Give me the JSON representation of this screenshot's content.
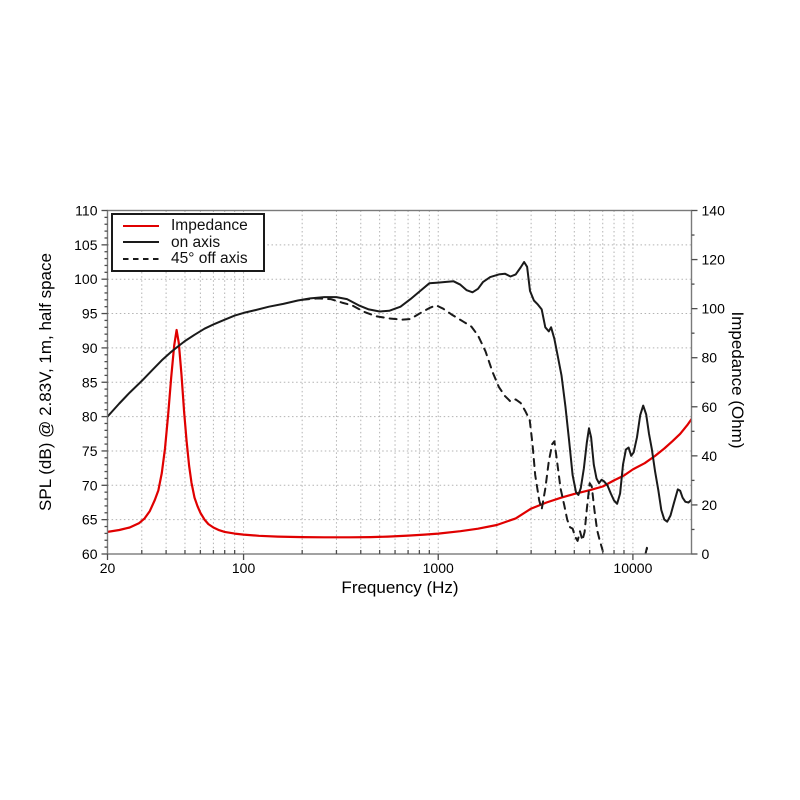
{
  "chart_data": {
    "type": "line",
    "title": "",
    "background": "#ffffff",
    "frame_color": "#7a7a7a",
    "grid": {
      "style": "dotted",
      "color": "#b3b3b3",
      "horizontal_db_lines": [
        65,
        70,
        75,
        80,
        85,
        90,
        95,
        100,
        105
      ],
      "vertical_log_lines": true
    },
    "x_axis": {
      "label": "Frequency (Hz)",
      "scale": "log",
      "min": 20,
      "max": 20000,
      "major_ticks": [
        20,
        100,
        1000,
        10000
      ],
      "major_tick_labels": [
        "20",
        "100",
        "1000",
        "10000"
      ]
    },
    "y_left": {
      "label": "SPL (dB) @ 2.83V, 1m, half space",
      "min": 60,
      "max": 110,
      "tick_step": 5,
      "minor_tick_step": 1,
      "tick_labels": [
        "60",
        "65",
        "70",
        "75",
        "80",
        "85",
        "90",
        "95",
        "100",
        "105",
        "110"
      ]
    },
    "y_right": {
      "label": "Impedance (Ohm)",
      "min": 0,
      "max": 140,
      "tick_step": 20,
      "minor_tick_step": 10,
      "tick_labels": [
        "0",
        "20",
        "40",
        "60",
        "80",
        "100",
        "120",
        "140"
      ]
    },
    "legend": {
      "position": "top-left",
      "entries": [
        {
          "label": "Impedance",
          "color": "#e00000",
          "dash": "solid"
        },
        {
          "label": "on axis",
          "color": "#1a1a1a",
          "dash": "solid"
        },
        {
          "label": "45° off axis",
          "color": "#1a1a1a",
          "dash": "dashed"
        }
      ]
    },
    "series": [
      {
        "name": "Impedance",
        "axis": "right",
        "unit": "Ohm",
        "color": "#e00000",
        "dash": "solid",
        "width": 2.2,
        "points": [
          [
            20,
            9.0
          ],
          [
            23,
            9.8
          ],
          [
            26,
            10.8
          ],
          [
            29,
            12.5
          ],
          [
            31,
            14.5
          ],
          [
            33,
            17.5
          ],
          [
            35,
            22
          ],
          [
            36.5,
            26
          ],
          [
            38,
            33
          ],
          [
            39.5,
            43
          ],
          [
            41,
            57
          ],
          [
            42.5,
            72
          ],
          [
            44,
            85
          ],
          [
            45.3,
            91.3
          ],
          [
            46.5,
            86
          ],
          [
            48,
            73
          ],
          [
            49.5,
            58
          ],
          [
            51,
            46
          ],
          [
            52.5,
            36
          ],
          [
            54,
            29
          ],
          [
            56,
            23
          ],
          [
            58,
            19.5
          ],
          [
            60,
            16.8
          ],
          [
            63,
            14
          ],
          [
            66,
            12.2
          ],
          [
            70,
            10.8
          ],
          [
            75,
            9.7
          ],
          [
            80,
            9.0
          ],
          [
            90,
            8.3
          ],
          [
            100,
            7.9
          ],
          [
            120,
            7.4
          ],
          [
            150,
            7.1
          ],
          [
            200,
            6.9
          ],
          [
            260,
            6.8
          ],
          [
            350,
            6.8
          ],
          [
            450,
            6.9
          ],
          [
            550,
            7.1
          ],
          [
            700,
            7.5
          ],
          [
            850,
            7.9
          ],
          [
            1000,
            8.3
          ],
          [
            1300,
            9.3
          ],
          [
            1600,
            10.3
          ],
          [
            2000,
            11.8
          ],
          [
            2500,
            14.5
          ],
          [
            3000,
            18.5
          ],
          [
            3600,
            21
          ],
          [
            4300,
            23
          ],
          [
            5000,
            24.5
          ],
          [
            6000,
            26
          ],
          [
            7000,
            27.5
          ],
          [
            8000,
            30
          ],
          [
            9000,
            32
          ],
          [
            10000,
            34.5
          ],
          [
            11500,
            37
          ],
          [
            13000,
            40
          ],
          [
            14500,
            43
          ],
          [
            16000,
            46
          ],
          [
            17500,
            49
          ],
          [
            19000,
            52.5
          ],
          [
            20000,
            55
          ]
        ]
      },
      {
        "name": "on axis",
        "axis": "left",
        "unit": "dB",
        "color": "#1a1a1a",
        "dash": "solid",
        "width": 2,
        "points": [
          [
            20,
            80.0
          ],
          [
            23,
            81.9
          ],
          [
            26,
            83.5
          ],
          [
            30,
            85.2
          ],
          [
            34,
            86.8
          ],
          [
            38,
            88.2
          ],
          [
            42,
            89.3
          ],
          [
            46,
            90.2
          ],
          [
            50,
            91.0
          ],
          [
            56,
            91.9
          ],
          [
            63,
            92.8
          ],
          [
            71,
            93.5
          ],
          [
            80,
            94.1
          ],
          [
            90,
            94.7
          ],
          [
            100,
            95.1
          ],
          [
            115,
            95.5
          ],
          [
            135,
            96.0
          ],
          [
            160,
            96.4
          ],
          [
            190,
            96.9
          ],
          [
            220,
            97.2
          ],
          [
            260,
            97.4
          ],
          [
            300,
            97.4
          ],
          [
            340,
            97.1
          ],
          [
            390,
            96.2
          ],
          [
            440,
            95.6
          ],
          [
            500,
            95.3
          ],
          [
            560,
            95.4
          ],
          [
            640,
            96.0
          ],
          [
            720,
            97.1
          ],
          [
            800,
            98.2
          ],
          [
            900,
            99.4
          ],
          [
            1000,
            99.5
          ],
          [
            1100,
            99.6
          ],
          [
            1200,
            99.7
          ],
          [
            1300,
            99.2
          ],
          [
            1400,
            98.4
          ],
          [
            1500,
            98.1
          ],
          [
            1600,
            98.6
          ],
          [
            1700,
            99.6
          ],
          [
            1850,
            100.3
          ],
          [
            2050,
            100.7
          ],
          [
            2200,
            100.8
          ],
          [
            2350,
            100.4
          ],
          [
            2500,
            100.7
          ],
          [
            2650,
            101.7
          ],
          [
            2760,
            102.5
          ],
          [
            2860,
            101.8
          ],
          [
            2960,
            98.3
          ],
          [
            3100,
            96.9
          ],
          [
            3250,
            96.3
          ],
          [
            3400,
            95.6
          ],
          [
            3550,
            93.0
          ],
          [
            3700,
            92.4
          ],
          [
            3800,
            93.0
          ],
          [
            3950,
            91.3
          ],
          [
            4100,
            89.0
          ],
          [
            4300,
            86.0
          ],
          [
            4500,
            81.5
          ],
          [
            4700,
            76.5
          ],
          [
            4900,
            71.5
          ],
          [
            5100,
            69.0
          ],
          [
            5250,
            68.6
          ],
          [
            5400,
            69.6
          ],
          [
            5600,
            72.5
          ],
          [
            5800,
            76.2
          ],
          [
            5950,
            78.3
          ],
          [
            6100,
            77.0
          ],
          [
            6300,
            73.0
          ],
          [
            6500,
            71.0
          ],
          [
            6700,
            70.3
          ],
          [
            6900,
            70.8
          ],
          [
            7100,
            70.6
          ],
          [
            7400,
            70.0
          ],
          [
            7700,
            68.8
          ],
          [
            8000,
            67.8
          ],
          [
            8300,
            67.3
          ],
          [
            8600,
            68.8
          ],
          [
            8900,
            73.0
          ],
          [
            9200,
            75.2
          ],
          [
            9500,
            75.5
          ],
          [
            9800,
            74.3
          ],
          [
            10100,
            74.8
          ],
          [
            10500,
            77.0
          ],
          [
            10900,
            80.2
          ],
          [
            11300,
            81.6
          ],
          [
            11700,
            80.3
          ],
          [
            12100,
            77.5
          ],
          [
            12500,
            75.3
          ],
          [
            13000,
            72.0
          ],
          [
            13500,
            69.3
          ],
          [
            14000,
            66.4
          ],
          [
            14500,
            65.0
          ],
          [
            15000,
            64.7
          ],
          [
            15600,
            65.6
          ],
          [
            16200,
            67.3
          ],
          [
            17000,
            69.4
          ],
          [
            17500,
            69.2
          ],
          [
            18000,
            68.2
          ],
          [
            18600,
            67.6
          ],
          [
            19300,
            67.5
          ],
          [
            20000,
            67.9
          ]
        ]
      },
      {
        "name": "45° off axis",
        "axis": "left",
        "unit": "dB",
        "color": "#1a1a1a",
        "dash": "dashed",
        "width": 2,
        "points": [
          [
            200,
            97.0
          ],
          [
            240,
            97.2
          ],
          [
            280,
            97.1
          ],
          [
            320,
            96.6
          ],
          [
            360,
            96.2
          ],
          [
            420,
            95.2
          ],
          [
            480,
            94.6
          ],
          [
            560,
            94.3
          ],
          [
            650,
            94.1
          ],
          [
            720,
            94.2
          ],
          [
            800,
            95.0
          ],
          [
            900,
            95.8
          ],
          [
            975,
            96.2
          ],
          [
            1060,
            95.7
          ],
          [
            1180,
            94.8
          ],
          [
            1350,
            93.8
          ],
          [
            1480,
            93.1
          ],
          [
            1600,
            91.8
          ],
          [
            1750,
            89.5
          ],
          [
            1900,
            86.5
          ],
          [
            2050,
            84.3
          ],
          [
            2200,
            83.0
          ],
          [
            2350,
            82.2
          ],
          [
            2500,
            82.5
          ],
          [
            2650,
            82.0
          ],
          [
            2800,
            80.8
          ],
          [
            2950,
            79.5
          ],
          [
            3050,
            76.0
          ],
          [
            3150,
            71.5
          ],
          [
            3300,
            67.8
          ],
          [
            3400,
            66.5
          ],
          [
            3550,
            69.5
          ],
          [
            3700,
            73.5
          ],
          [
            3850,
            76.0
          ],
          [
            3950,
            76.4
          ],
          [
            4100,
            73.0
          ],
          [
            4250,
            69.5
          ],
          [
            4450,
            67.0
          ],
          [
            4600,
            65.0
          ],
          [
            4750,
            63.9
          ],
          [
            4900,
            63.7
          ],
          [
            5050,
            62.5
          ],
          [
            5200,
            61.9
          ],
          [
            5350,
            63.3
          ],
          [
            5500,
            62.0
          ],
          [
            5650,
            63.2
          ],
          [
            5800,
            66.5
          ],
          [
            6000,
            70.3
          ],
          [
            6150,
            69.8
          ],
          [
            6350,
            66.3
          ],
          [
            6550,
            63.5
          ],
          [
            6750,
            62.0
          ],
          [
            6950,
            60.8
          ],
          [
            7150,
            59.5
          ],
          [
            7400,
            56.5
          ],
          [
            8000,
            51
          ],
          [
            9000,
            49
          ],
          [
            10200,
            53
          ],
          [
            11000,
            56.5
          ],
          [
            11500,
            59.5
          ],
          [
            11800,
            60.9
          ],
          [
            12100,
            58
          ],
          [
            12500,
            53
          ]
        ]
      }
    ]
  }
}
